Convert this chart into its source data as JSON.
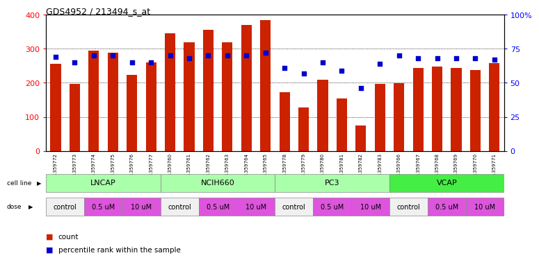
{
  "title": "GDS4952 / 213494_s_at",
  "samples": [
    "GSM1359772",
    "GSM1359773",
    "GSM1359774",
    "GSM1359775",
    "GSM1359776",
    "GSM1359777",
    "GSM1359760",
    "GSM1359761",
    "GSM1359762",
    "GSM1359763",
    "GSM1359764",
    "GSM1359765",
    "GSM1359778",
    "GSM1359779",
    "GSM1359780",
    "GSM1359781",
    "GSM1359782",
    "GSM1359783",
    "GSM1359766",
    "GSM1359767",
    "GSM1359768",
    "GSM1359769",
    "GSM1359770",
    "GSM1359771"
  ],
  "counts": [
    255,
    197,
    295,
    288,
    224,
    260,
    345,
    320,
    355,
    320,
    370,
    385,
    173,
    127,
    210,
    154,
    74,
    196,
    198,
    243,
    247,
    243,
    238,
    258
  ],
  "percentiles": [
    69,
    65,
    70,
    70,
    65,
    65,
    70,
    68,
    70,
    70,
    70,
    72,
    61,
    57,
    65,
    59,
    46,
    64,
    70,
    68,
    68,
    68,
    68,
    67
  ],
  "cell_line_groups": [
    {
      "name": "LNCAP",
      "start": 0,
      "end": 6,
      "color": "#aaffaa"
    },
    {
      "name": "NCIH660",
      "start": 6,
      "end": 12,
      "color": "#aaffaa"
    },
    {
      "name": "PC3",
      "start": 12,
      "end": 18,
      "color": "#aaffaa"
    },
    {
      "name": "VCAP",
      "start": 18,
      "end": 24,
      "color": "#44dd44"
    }
  ],
  "dose_groups": [
    {
      "label": "control",
      "start": 0,
      "end": 2,
      "color": "#f0f0f0"
    },
    {
      "label": "0.5 uM",
      "start": 2,
      "end": 4,
      "color": "#dd55dd"
    },
    {
      "label": "10 uM",
      "start": 4,
      "end": 6,
      "color": "#dd55dd"
    },
    {
      "label": "control",
      "start": 6,
      "end": 8,
      "color": "#f0f0f0"
    },
    {
      "label": "0.5 uM",
      "start": 8,
      "end": 10,
      "color": "#dd55dd"
    },
    {
      "label": "10 uM",
      "start": 10,
      "end": 12,
      "color": "#dd55dd"
    },
    {
      "label": "control",
      "start": 12,
      "end": 14,
      "color": "#f0f0f0"
    },
    {
      "label": "0.5 uM",
      "start": 14,
      "end": 16,
      "color": "#dd55dd"
    },
    {
      "label": "10 uM",
      "start": 16,
      "end": 18,
      "color": "#dd55dd"
    },
    {
      "label": "control",
      "start": 18,
      "end": 20,
      "color": "#f0f0f0"
    },
    {
      "label": "0.5 uM",
      "start": 20,
      "end": 22,
      "color": "#dd55dd"
    },
    {
      "label": "10 uM",
      "start": 22,
      "end": 24,
      "color": "#dd55dd"
    }
  ],
  "bar_color": "#cc2200",
  "dot_color": "#0000cc",
  "ylim_left": [
    0,
    400
  ],
  "ylim_right": [
    0,
    100
  ],
  "yticks_left": [
    0,
    100,
    200,
    300,
    400
  ],
  "yticks_right": [
    0,
    25,
    50,
    75,
    100
  ],
  "ytick_labels_right": [
    "0",
    "25",
    "50",
    "75",
    "100%"
  ],
  "grid_yticks": [
    100,
    200,
    300
  ],
  "background_color": "#ffffff"
}
